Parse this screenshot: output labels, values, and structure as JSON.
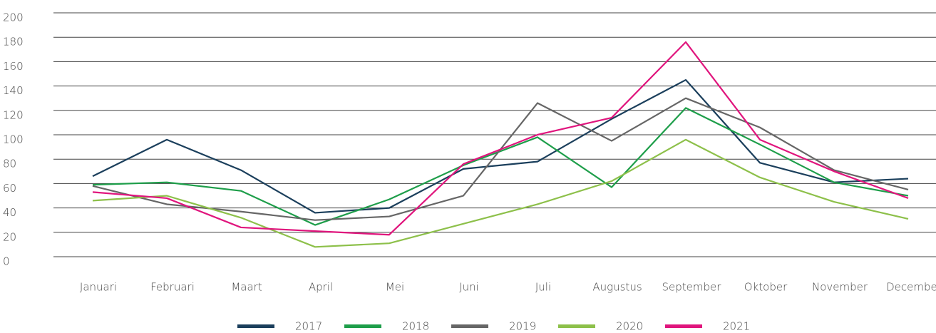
{
  "chart_data": {
    "type": "line",
    "categories": [
      "Januari",
      "Februari",
      "Maart",
      "April",
      "Mei",
      "Juni",
      "Juli",
      "Augustus",
      "September",
      "Oktober",
      "November",
      "December"
    ],
    "series": [
      {
        "name": "2017",
        "color": "#1b3f5c",
        "values": [
          66,
          96,
          71,
          36,
          40,
          72,
          78,
          113,
          145,
          77,
          61,
          64
        ]
      },
      {
        "name": "2018",
        "color": "#1e9e4a",
        "values": [
          59,
          61,
          54,
          26,
          47,
          75,
          98,
          57,
          122,
          92,
          61,
          50
        ]
      },
      {
        "name": "2019",
        "color": "#666666",
        "values": [
          58,
          43,
          37,
          30,
          33,
          50,
          126,
          95,
          130,
          106,
          71,
          55
        ]
      },
      {
        "name": "2020",
        "color": "#8dc04a",
        "values": [
          46,
          50,
          32,
          8,
          11,
          27,
          43,
          62,
          96,
          65,
          45,
          31
        ]
      },
      {
        "name": "2021",
        "color": "#e0157d",
        "values": [
          53,
          48,
          24,
          21,
          18,
          76,
          100,
          114,
          176,
          96,
          70,
          48
        ]
      }
    ],
    "ylim": [
      0,
      200
    ],
    "yticks": [
      0,
      20,
      40,
      60,
      80,
      100,
      120,
      140,
      160,
      180,
      200
    ],
    "grid": true
  }
}
